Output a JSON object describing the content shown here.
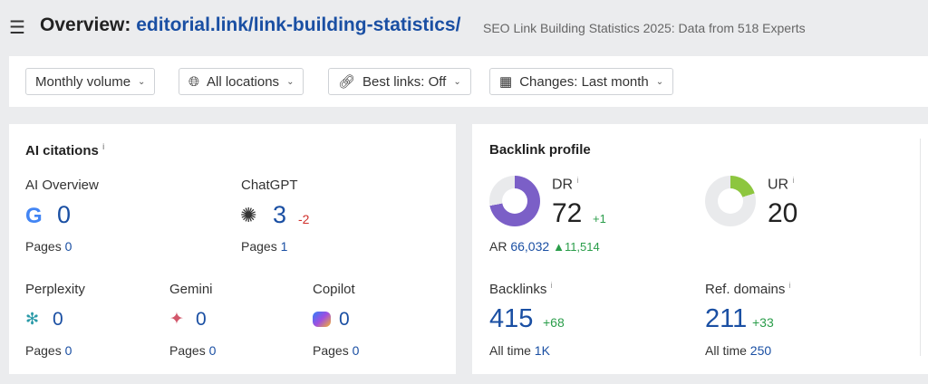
{
  "header": {
    "title_prefix": "Overview:",
    "url": "editorial.link/link-building-statistics/",
    "subtitle": "SEO Link Building Statistics 2025: Data from 518 Experts"
  },
  "filters": [
    {
      "label": "Monthly volume",
      "icon": ""
    },
    {
      "label": "All locations",
      "icon": "globe-icon"
    },
    {
      "label": "Best links: Off",
      "icon": "link-icon"
    },
    {
      "label": "Changes: Last month",
      "icon": "calendar-icon"
    }
  ],
  "ai": {
    "title": "AI citations",
    "pages_label": "Pages",
    "items": [
      {
        "name": "AI Overview",
        "value": "0",
        "pages": "0"
      },
      {
        "name": "ChatGPT",
        "value": "3",
        "change": "-2",
        "pages": "1"
      },
      {
        "name": "Perplexity",
        "value": "0",
        "pages": "0"
      },
      {
        "name": "Gemini",
        "value": "0",
        "pages": "0"
      },
      {
        "name": "Copilot",
        "value": "0",
        "pages": "0"
      }
    ]
  },
  "backlink": {
    "title": "Backlink profile",
    "dr": {
      "label": "DR",
      "value": "72",
      "change": "+1",
      "fraction": 0.72,
      "color": "#7b5fc7"
    },
    "ur": {
      "label": "UR",
      "value": "20",
      "fraction": 0.2,
      "color": "#8dc63f"
    },
    "ar": {
      "label": "AR",
      "value": "66,032",
      "change": "11,514"
    },
    "backlinks": {
      "label": "Backlinks",
      "value": "415",
      "change": "+68",
      "alltime_label": "All time",
      "alltime": "1K"
    },
    "refdomains": {
      "label": "Ref. domains",
      "value": "211",
      "change": "+33",
      "alltime_label": "All time",
      "alltime": "250"
    }
  }
}
